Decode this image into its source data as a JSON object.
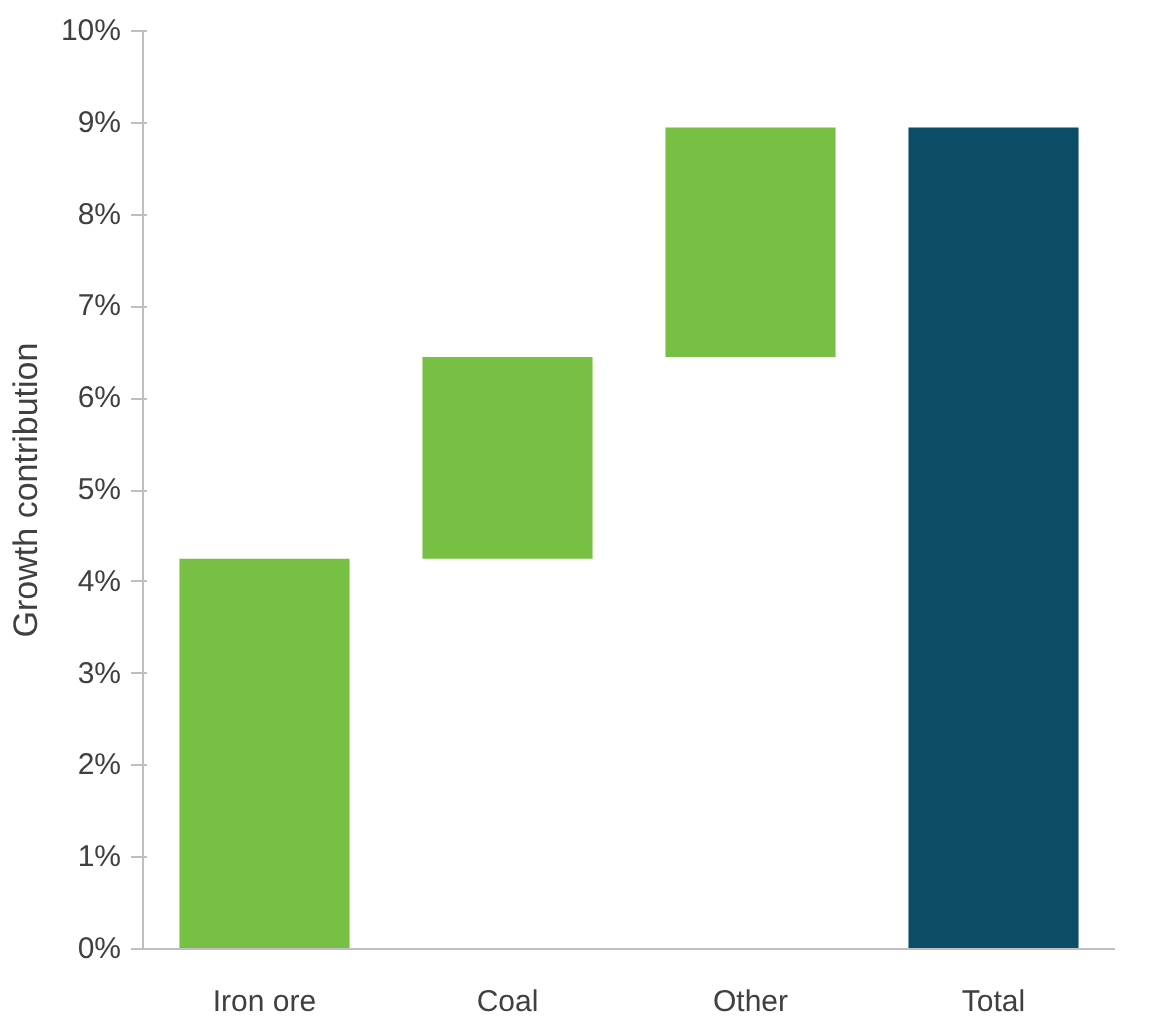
{
  "chart_data": {
    "type": "bar",
    "ylabel": "Growth contribution",
    "categories": [
      "Iron ore",
      "Coal",
      "Other",
      "Total"
    ],
    "values": [
      4.25,
      2.2,
      2.5,
      8.95
    ],
    "base": [
      0,
      4.25,
      6.45,
      0
    ],
    "colors": [
      "#77c043",
      "#77c043",
      "#77c043",
      "#0b4d66"
    ],
    "ylim": [
      0,
      10
    ],
    "yticks": [
      {
        "value": 0,
        "label": "0%"
      },
      {
        "value": 1,
        "label": "1%"
      },
      {
        "value": 2,
        "label": "2%"
      },
      {
        "value": 3,
        "label": "3%"
      },
      {
        "value": 4,
        "label": "4%"
      },
      {
        "value": 5,
        "label": "5%"
      },
      {
        "value": 6,
        "label": "6%"
      },
      {
        "value": 7,
        "label": "7%"
      },
      {
        "value": 8,
        "label": "8%"
      },
      {
        "value": 9,
        "label": "9%"
      },
      {
        "value": 10,
        "label": "10%"
      }
    ],
    "grid": false
  }
}
